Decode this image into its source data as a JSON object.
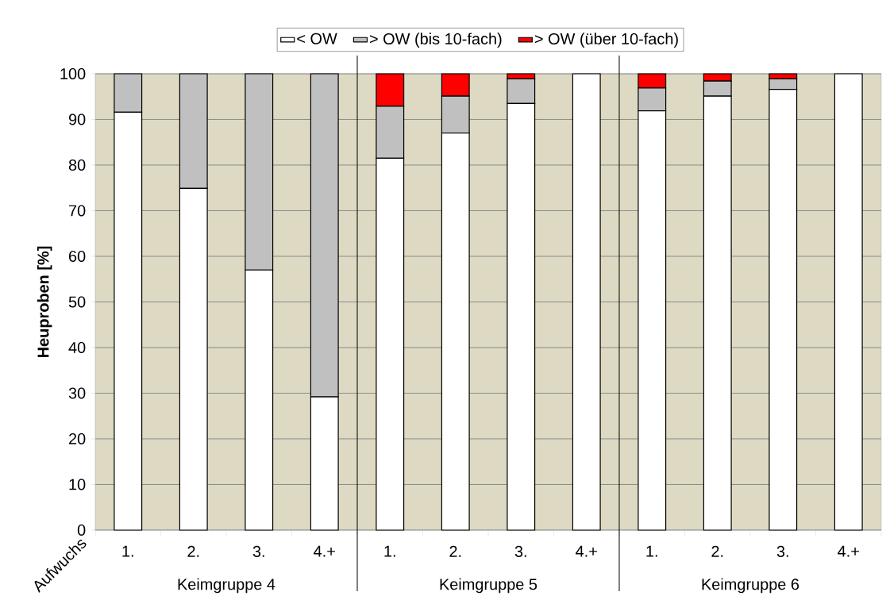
{
  "chart_data": {
    "type": "bar",
    "stacked": true,
    "ylabel": "Heuproben [%]",
    "xlabel": "Aufwuchs",
    "categories": [
      "1.",
      "2.",
      "3.",
      "4.+",
      "1.",
      "2.",
      "3.",
      "4.+",
      "1.",
      "2.",
      "3.",
      "4.+"
    ],
    "series": [
      {
        "name": "< OW",
        "color": "#ffffff",
        "values": [
          91.6,
          74.9,
          57.0,
          29.2,
          81.5,
          87.0,
          93.5,
          100,
          91.9,
          95.1,
          96.6,
          100
        ]
      },
      {
        "name": "> OW (bis 10-fach)",
        "color": "#c0c0c0",
        "values": [
          8.4,
          25.1,
          43.0,
          70.8,
          11.4,
          8.1,
          5.4,
          0,
          5.0,
          3.3,
          2.3,
          0
        ]
      },
      {
        "name": "> OW (über 10-fach)",
        "color": "#ff0000",
        "values": [
          0,
          0,
          0,
          0,
          7.1,
          4.9,
          1.1,
          0,
          3.1,
          1.6,
          1.1,
          0
        ]
      }
    ],
    "annotations": [
      "Keimgruppe 4",
      "Keimgruppe 5",
      "Keimgruppe 6"
    ],
    "ylim": [
      0,
      100
    ],
    "yticks": [
      0,
      10,
      20,
      30,
      40,
      50,
      60,
      70,
      80,
      90,
      100
    ],
    "grid": "y",
    "legend": "top"
  }
}
